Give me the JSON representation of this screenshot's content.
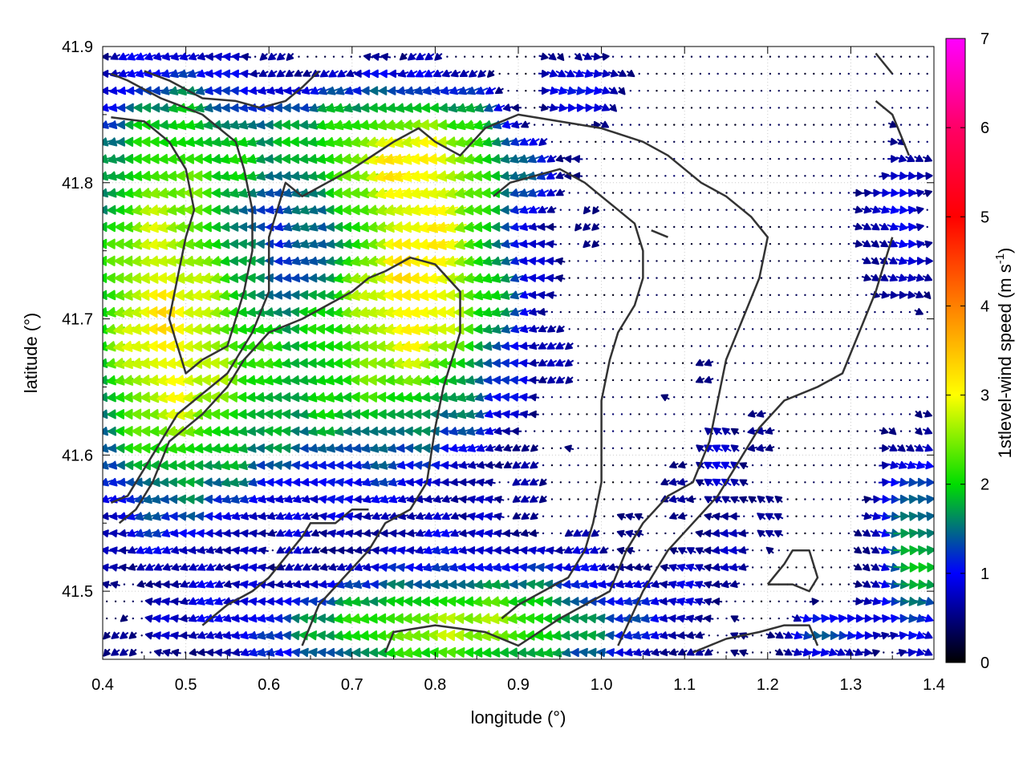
{
  "chart_data": {
    "type": "vector-field",
    "xlabel": "longitude (°)",
    "ylabel": "latitude (°)",
    "xlim": [
      0.4,
      1.4
    ],
    "ylim": [
      41.45,
      41.9
    ],
    "x_ticks": [
      "0.4",
      "0.5",
      "0.6",
      "0.7",
      "0.8",
      "0.9",
      "1.0",
      "1.1",
      "1.2",
      "1.3",
      "1.4"
    ],
    "y_ticks": [
      "41.5",
      "41.6",
      "41.7",
      "41.8",
      "41.9"
    ],
    "grid": true,
    "colorbar": {
      "label": "1stlevel-wind speed (m s-1)",
      "label_main": "1stlevel-wind speed (m s",
      "label_sup": "-1",
      "label_close": ")",
      "range": [
        0,
        7
      ],
      "ticks": [
        "0",
        "1",
        "2",
        "3",
        "4",
        "5",
        "6",
        "7"
      ],
      "colors": [
        "#000000",
        "#0000ff",
        "#00cc00",
        "#ffff00",
        "#ff7f00",
        "#ff0000",
        "#ff00ff"
      ]
    },
    "wind_field_summary": {
      "west_region": {
        "lon_range": [
          0.4,
          0.6
        ],
        "direction": "westward",
        "speed": 2.5
      },
      "central_valley": {
        "lon_range": [
          0.7,
          0.9
        ],
        "direction": "westward",
        "speed": 2.2
      },
      "south": {
        "lat_range": [
          41.45,
          41.52
        ],
        "direction": "westward",
        "speed": 1.8
      },
      "east_plateau": {
        "lon_range": [
          1.0,
          1.4
        ],
        "direction": "weak",
        "speed": 0.3
      },
      "north_east": {
        "lat_range": [
          41.83,
          41.9
        ],
        "direction": "eastward",
        "speed": 1.0
      },
      "far_east_south": {
        "lon_range": [
          1.33,
          1.4
        ],
        "lat_range": [
          41.48,
          41.6
        ],
        "direction": "eastward",
        "speed": 1.6
      }
    },
    "contours": [
      [
        [
          0.41,
          41.565
        ],
        [
          0.43,
          41.57
        ],
        [
          0.46,
          41.6
        ],
        [
          0.49,
          41.63
        ],
        [
          0.52,
          41.645
        ],
        [
          0.55,
          41.66
        ],
        [
          0.58,
          41.69
        ],
        [
          0.6,
          41.72
        ],
        [
          0.6,
          41.76
        ],
        [
          0.62,
          41.8
        ],
        [
          0.64,
          41.79
        ],
        [
          0.67,
          41.8
        ],
        [
          0.7,
          41.81
        ],
        [
          0.75,
          41.83
        ],
        [
          0.78,
          41.84
        ],
        [
          0.8,
          41.83
        ],
        [
          0.83,
          41.82
        ],
        [
          0.86,
          41.84
        ],
        [
          0.9,
          41.85
        ],
        [
          0.95,
          41.845
        ],
        [
          1.0,
          41.84
        ],
        [
          1.05,
          41.83
        ],
        [
          1.08,
          41.82
        ],
        [
          1.1,
          41.81
        ],
        [
          1.12,
          41.8
        ],
        [
          1.15,
          41.79
        ],
        [
          1.18,
          41.775
        ],
        [
          1.2,
          41.76
        ],
        [
          1.19,
          41.73
        ],
        [
          1.17,
          41.7
        ],
        [
          1.15,
          41.67
        ],
        [
          1.14,
          41.64
        ],
        [
          1.13,
          41.61
        ],
        [
          1.11,
          41.58
        ],
        [
          1.08,
          41.57
        ],
        [
          1.05,
          41.55
        ],
        [
          1.03,
          41.53
        ],
        [
          1.01,
          41.5
        ],
        [
          0.98,
          41.49
        ],
        [
          0.95,
          41.48
        ],
        [
          0.9,
          41.46
        ],
        [
          0.86,
          41.47
        ],
        [
          0.8,
          41.475
        ],
        [
          0.75,
          41.47
        ],
        [
          0.74,
          41.455
        ]
      ],
      [
        [
          0.41,
          41.848
        ],
        [
          0.45,
          41.845
        ],
        [
          0.48,
          41.83
        ],
        [
          0.5,
          41.81
        ],
        [
          0.51,
          41.78
        ],
        [
          0.5,
          41.76
        ],
        [
          0.49,
          41.73
        ],
        [
          0.48,
          41.7
        ],
        [
          0.49,
          41.68
        ],
        [
          0.5,
          41.66
        ],
        [
          0.52,
          41.67
        ],
        [
          0.55,
          41.68
        ],
        [
          0.56,
          41.7
        ],
        [
          0.57,
          41.72
        ],
        [
          0.58,
          41.75
        ],
        [
          0.58,
          41.78
        ],
        [
          0.57,
          41.81
        ],
        [
          0.56,
          41.83
        ],
        [
          0.54,
          41.84
        ],
        [
          0.52,
          41.85
        ],
        [
          0.5,
          41.855
        ],
        [
          0.47,
          41.862
        ],
        [
          0.43,
          41.875
        ],
        [
          0.41,
          41.88
        ]
      ],
      [
        [
          0.64,
          41.46
        ],
        [
          0.66,
          41.49
        ],
        [
          0.69,
          41.51
        ],
        [
          0.72,
          41.53
        ],
        [
          0.74,
          41.55
        ],
        [
          0.77,
          41.56
        ],
        [
          0.79,
          41.58
        ],
        [
          0.8,
          41.62
        ],
        [
          0.81,
          41.65
        ],
        [
          0.83,
          41.69
        ],
        [
          0.83,
          41.72
        ],
        [
          0.8,
          41.74
        ],
        [
          0.77,
          41.745
        ],
        [
          0.74,
          41.735
        ],
        [
          0.72,
          41.73
        ],
        [
          0.7,
          41.72
        ],
        [
          0.67,
          41.71
        ],
        [
          0.64,
          41.7
        ],
        [
          0.6,
          41.69
        ],
        [
          0.57,
          41.67
        ],
        [
          0.55,
          41.65
        ],
        [
          0.52,
          41.63
        ],
        [
          0.48,
          41.61
        ],
        [
          0.46,
          41.58
        ],
        [
          0.44,
          41.56
        ],
        [
          0.42,
          41.55
        ]
      ],
      [
        [
          0.52,
          41.475
        ],
        [
          0.55,
          41.49
        ],
        [
          0.58,
          41.5
        ],
        [
          0.6,
          41.51
        ],
        [
          0.62,
          41.525
        ],
        [
          0.64,
          41.54
        ],
        [
          0.65,
          41.55
        ],
        [
          0.68,
          41.55
        ],
        [
          0.7,
          41.56
        ],
        [
          0.72,
          41.56
        ]
      ],
      [
        [
          0.87,
          41.79
        ],
        [
          0.89,
          41.8
        ],
        [
          0.92,
          41.805
        ],
        [
          0.95,
          41.81
        ],
        [
          0.98,
          41.8
        ],
        [
          1.0,
          41.79
        ],
        [
          1.02,
          41.78
        ],
        [
          1.04,
          41.77
        ],
        [
          1.05,
          41.75
        ],
        [
          1.05,
          41.73
        ],
        [
          1.04,
          41.71
        ],
        [
          1.02,
          41.69
        ],
        [
          1.01,
          41.67
        ],
        [
          1.0,
          41.64
        ],
        [
          1.0,
          41.61
        ],
        [
          1.0,
          41.58
        ],
        [
          0.99,
          41.55
        ],
        [
          0.98,
          41.53
        ],
        [
          0.96,
          41.51
        ],
        [
          0.93,
          41.5
        ],
        [
          0.9,
          41.49
        ],
        [
          0.88,
          41.48
        ]
      ],
      [
        [
          1.02,
          41.46
        ],
        [
          1.05,
          41.5
        ],
        [
          1.08,
          41.53
        ],
        [
          1.11,
          41.55
        ],
        [
          1.14,
          41.57
        ],
        [
          1.17,
          41.6
        ],
        [
          1.19,
          41.62
        ],
        [
          1.22,
          41.64
        ],
        [
          1.26,
          41.65
        ],
        [
          1.29,
          41.66
        ],
        [
          1.31,
          41.69
        ],
        [
          1.33,
          41.72
        ],
        [
          1.34,
          41.74
        ],
        [
          1.35,
          41.76
        ]
      ],
      [
        [
          1.11,
          41.455
        ],
        [
          1.15,
          41.465
        ],
        [
          1.19,
          41.47
        ],
        [
          1.22,
          41.475
        ],
        [
          1.25,
          41.475
        ],
        [
          1.26,
          41.46
        ]
      ],
      [
        [
          1.2,
          41.505
        ],
        [
          1.23,
          41.505
        ],
        [
          1.25,
          41.5
        ],
        [
          1.26,
          41.51
        ],
        [
          1.25,
          41.53
        ],
        [
          1.23,
          41.53
        ],
        [
          1.22,
          41.52
        ],
        [
          1.2,
          41.505
        ]
      ],
      [
        [
          0.45,
          41.882
        ],
        [
          0.48,
          41.875
        ],
        [
          0.52,
          41.862
        ],
        [
          0.56,
          41.86
        ],
        [
          0.59,
          41.855
        ],
        [
          0.62,
          41.86
        ],
        [
          0.64,
          41.87
        ],
        [
          0.66,
          41.882
        ]
      ],
      [
        [
          1.33,
          41.86
        ],
        [
          1.35,
          41.85
        ],
        [
          1.36,
          41.835
        ],
        [
          1.37,
          41.82
        ]
      ],
      [
        [
          1.33,
          41.895
        ],
        [
          1.35,
          41.88
        ]
      ],
      [
        [
          1.06,
          41.765
        ],
        [
          1.08,
          41.76
        ]
      ]
    ]
  }
}
